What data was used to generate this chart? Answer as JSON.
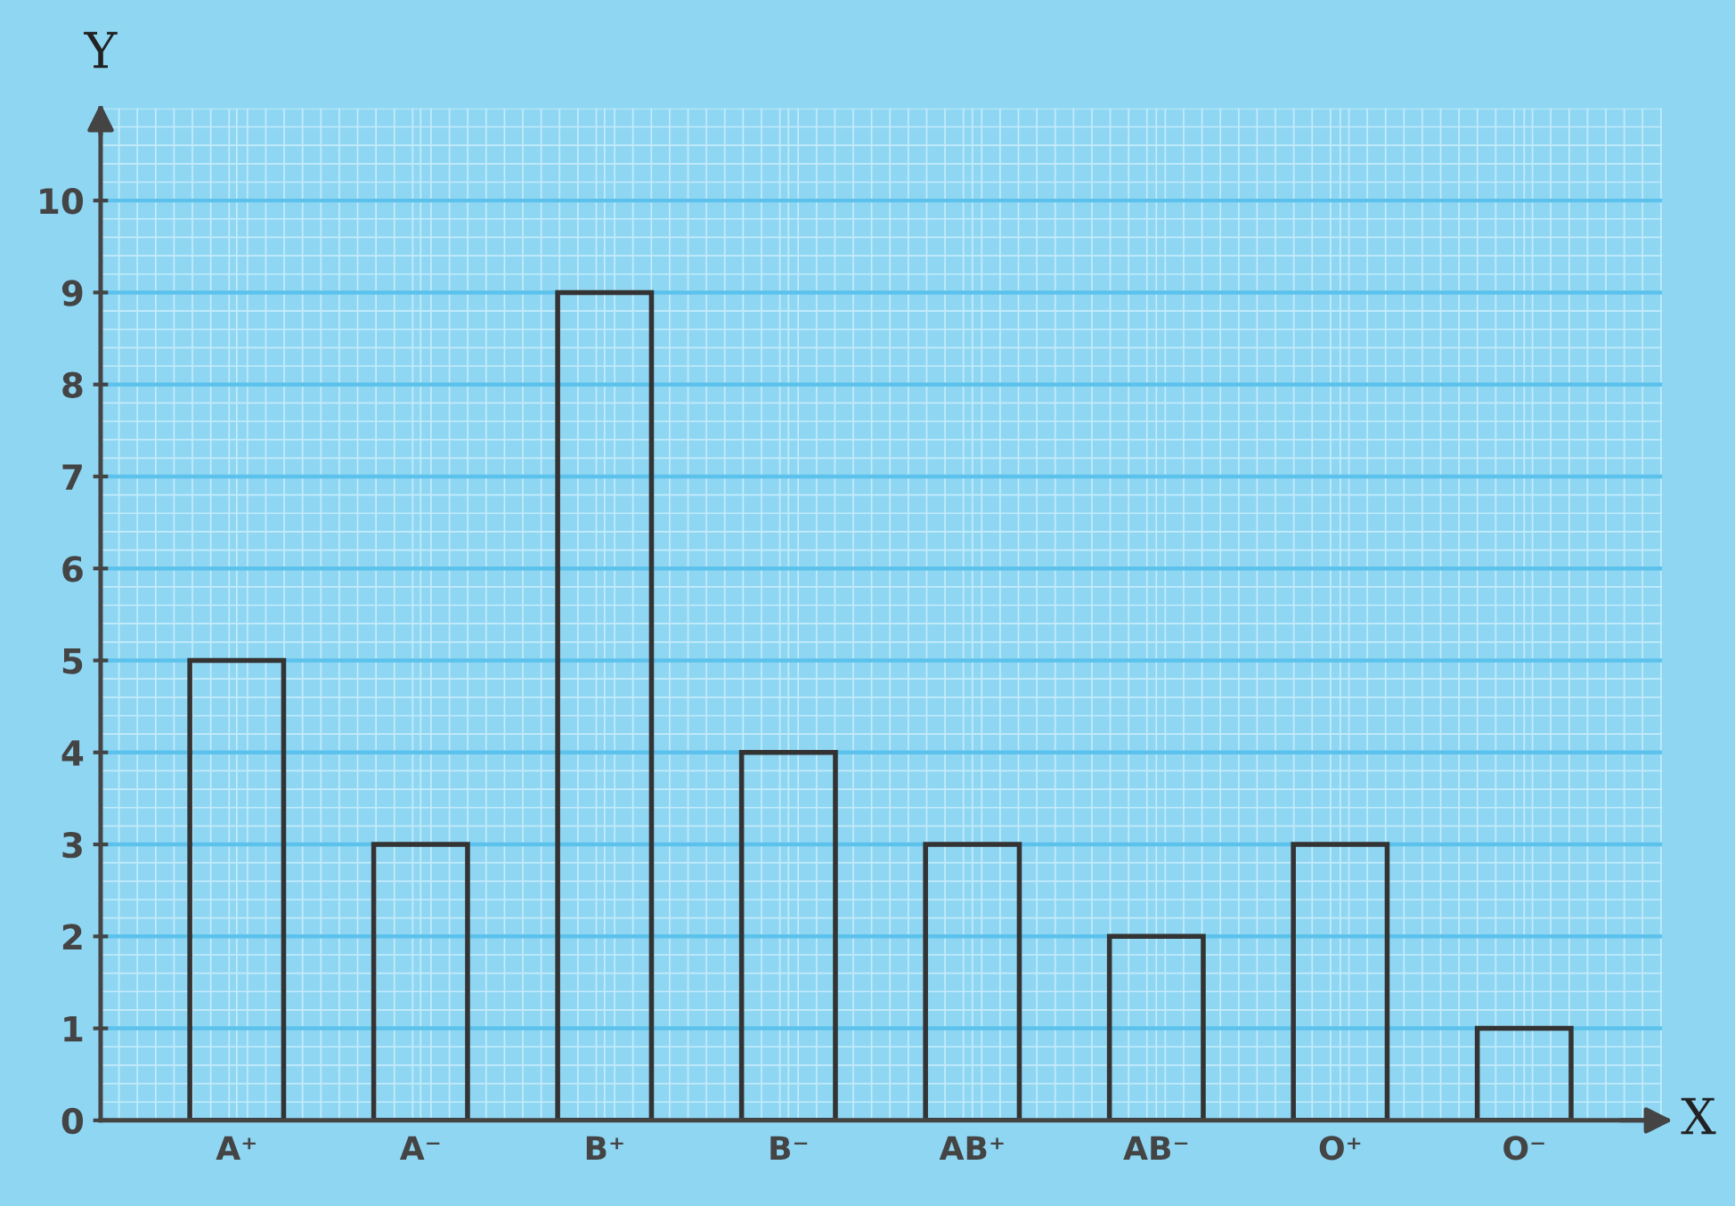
{
  "chart_data": {
    "type": "bar",
    "xlabel": "X",
    "ylabel": "Y",
    "categories": [
      "A⁺",
      "A⁻",
      "B⁺",
      "B⁻",
      "AB⁺",
      "AB⁻",
      "O⁺",
      "O⁻"
    ],
    "values": [
      5,
      3,
      9,
      4,
      3,
      2,
      3,
      1
    ],
    "color": "#333333",
    "ylim": [
      0,
      11
    ],
    "yticks": [
      0,
      1,
      2,
      3,
      4,
      5,
      6,
      7,
      8,
      9,
      10
    ],
    "grid": true
  }
}
